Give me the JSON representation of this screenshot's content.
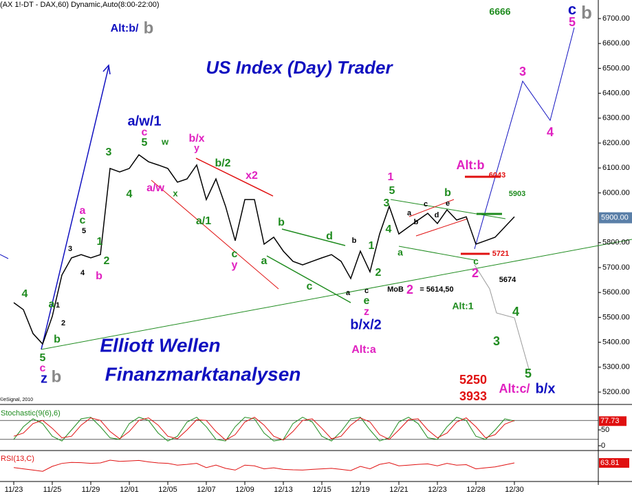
{
  "header": "(AX 1!-DT - DAX,60) Dynamic,Auto(8:00-22:00)",
  "copyright": "©eSignal, 2010",
  "chart_data": [
    {
      "type": "line",
      "color": "#000000",
      "categories": [
        "11/23",
        null,
        null,
        null,
        "11/25",
        null,
        null,
        null,
        "11/29",
        null,
        null,
        null,
        "12/01",
        null,
        null,
        null,
        "12/05",
        null,
        null,
        null,
        "12/07",
        null,
        null,
        null,
        "12/09",
        null,
        null,
        null,
        "12/13",
        null,
        null,
        null,
        "12/15",
        null,
        null,
        null,
        "12/19",
        null,
        null,
        null,
        "12/21",
        null,
        null,
        null,
        "12/23",
        null,
        null,
        null,
        "12/28",
        null,
        null,
        null,
        "12/30"
      ],
      "series": [
        {
          "name": "DAX",
          "color": "#000000",
          "values": [
            5559,
            5531,
            5435,
            5393,
            5504,
            5670,
            5739,
            5752,
            5739,
            5752,
            6098,
            6084,
            6098,
            6153,
            6125,
            6112,
            6098,
            6043,
            6056,
            6112,
            5973,
            6056,
            5946,
            5808,
            5973,
            5973,
            5794,
            5822,
            5766,
            5725,
            5711,
            5725,
            5739,
            5752,
            5725,
            5656,
            5766,
            5683,
            5835,
            5946,
            5835,
            5863,
            5891,
            5918,
            5877,
            5932,
            5891,
            5904,
            5794,
            5808,
            5822,
            5863,
            5904
          ]
        }
      ],
      "ylim": [
        5150,
        6800
      ],
      "yticks": [
        {
          "value": 5200,
          "label": "5200.00"
        },
        {
          "value": 5300,
          "label": "5300.00"
        },
        {
          "value": 5400,
          "label": "5400.00"
        },
        {
          "value": 5500,
          "label": "5500.00"
        },
        {
          "value": 5600,
          "label": "5600.00"
        },
        {
          "value": 5700,
          "label": "5700.00"
        },
        {
          "value": 5800,
          "label": "5800.00"
        },
        {
          "value": 6000,
          "label": "6000.00"
        },
        {
          "value": 6100,
          "label": "6100.00"
        },
        {
          "value": 6200,
          "label": "6200.00"
        },
        {
          "value": 6300,
          "label": "6300.00"
        },
        {
          "value": 6400,
          "label": "6400.00"
        },
        {
          "value": 6500,
          "label": "6500.00"
        },
        {
          "value": 6600,
          "label": "6600.00"
        },
        {
          "value": 6700,
          "label": "6700.00"
        }
      ],
      "last_price": {
        "value": 5900,
        "label": "5900.00"
      },
      "annotations": [
        {
          "text": "6666",
          "color": "#1e8b1e"
        },
        {
          "text": "c",
          "color": "#1010c0"
        },
        {
          "text": "5",
          "color": "#e020c0"
        },
        {
          "text": "b",
          "color": "#888888"
        },
        {
          "text": "Alt:b/",
          "color": "#1010c0"
        },
        {
          "text": "b",
          "color": "#888888"
        },
        {
          "text": "US Index (Day) Trader",
          "color": "#1010c0"
        },
        {
          "text": "a/w/1",
          "color": "#1010c0"
        },
        {
          "text": "c",
          "color": "#e020c0"
        },
        {
          "text": "5",
          "color": "#1e8b1e"
        },
        {
          "text": "w",
          "color": "#1e8b1e"
        },
        {
          "text": "3",
          "color": "#1e8b1e"
        },
        {
          "text": "4",
          "color": "#1e8b1e"
        },
        {
          "text": "b/x",
          "color": "#e020c0"
        },
        {
          "text": "y",
          "color": "#e020c0"
        },
        {
          "text": "b/2",
          "color": "#1e8b1e"
        },
        {
          "text": "x2",
          "color": "#e020c0"
        },
        {
          "text": "a/w",
          "color": "#e020c0"
        },
        {
          "text": "x",
          "color": "#1e8b1e"
        },
        {
          "text": "a/1",
          "color": "#1e8b1e"
        },
        {
          "text": "c",
          "color": "#1e8b1e"
        },
        {
          "text": "y",
          "color": "#e020c0"
        },
        {
          "text": "a",
          "color": "#1e8b1e"
        },
        {
          "text": "b",
          "color": "#1e8b1e"
        },
        {
          "text": "d",
          "color": "#1e8b1e"
        },
        {
          "text": "c",
          "color": "#1e8b1e"
        },
        {
          "text": "a",
          "color": "#000000"
        },
        {
          "text": "b",
          "color": "#000000"
        },
        {
          "text": "c",
          "color": "#000000"
        },
        {
          "text": "e",
          "color": "#1e8b1e"
        },
        {
          "text": "z",
          "color": "#e020c0"
        },
        {
          "text": "b/x/2",
          "color": "#1010c0"
        },
        {
          "text": "Alt:a",
          "color": "#e020c0"
        },
        {
          "text": "1",
          "color": "#1e8b1e"
        },
        {
          "text": "2",
          "color": "#1e8b1e"
        },
        {
          "text": "MoB",
          "color": "#000000"
        },
        {
          "text": "2",
          "color": "#e020c0"
        },
        {
          "text": "= 5614,50",
          "color": "#000000"
        },
        {
          "text": "1",
          "color": "#e020c0"
        },
        {
          "text": "5",
          "color": "#1e8b1e"
        },
        {
          "text": "3",
          "color": "#1e8b1e"
        },
        {
          "text": "4",
          "color": "#1e8b1e"
        },
        {
          "text": "a",
          "color": "#1e8b1e"
        },
        {
          "text": "a",
          "color": "#000000"
        },
        {
          "text": "b",
          "color": "#000000"
        },
        {
          "text": "c",
          "color": "#000000"
        },
        {
          "text": "d",
          "color": "#000000"
        },
        {
          "text": "e",
          "color": "#000000"
        },
        {
          "text": "b",
          "color": "#1e8b1e"
        },
        {
          "text": "c",
          "color": "#1e8b1e"
        },
        {
          "text": "2",
          "color": "#e020c0"
        },
        {
          "text": "5674",
          "color": "#000000"
        },
        {
          "text": "Alt:1",
          "color": "#1e8b1e"
        },
        {
          "text": "Alt:b",
          "color": "#e020c0"
        },
        {
          "text": "6043",
          "color": "#e01010"
        },
        {
          "text": "5903",
          "color": "#1e8b1e"
        },
        {
          "text": "5721",
          "color": "#e01010"
        },
        {
          "text": "3",
          "color": "#e020c0"
        },
        {
          "text": "4",
          "color": "#e020c0"
        },
        {
          "text": "4",
          "color": "#1e8b1e"
        },
        {
          "text": "3",
          "color": "#1e8b1e"
        },
        {
          "text": "5",
          "color": "#1e8b1e"
        },
        {
          "text": "5250",
          "color": "#e01010"
        },
        {
          "text": "3933",
          "color": "#e01010"
        },
        {
          "text": "Alt:c/",
          "color": "#e020c0"
        },
        {
          "text": "b/x",
          "color": "#1010c0"
        },
        {
          "text": "a",
          "color": "#e020c0"
        },
        {
          "text": "c",
          "color": "#1e8b1e"
        },
        {
          "text": "5",
          "color": "#000000"
        },
        {
          "text": "3",
          "color": "#000000"
        },
        {
          "text": "1",
          "color": "#1e8b1e"
        },
        {
          "text": "4",
          "color": "#000000"
        },
        {
          "text": "2",
          "color": "#1e8b1e"
        },
        {
          "text": "b",
          "color": "#e020c0"
        },
        {
          "text": "4",
          "color": "#1e8b1e"
        },
        {
          "text": "a",
          "color": "#1e8b1e"
        },
        {
          "text": "1",
          "color": "#000000"
        },
        {
          "text": "2",
          "color": "#000000"
        },
        {
          "text": "b",
          "color": "#1e8b1e"
        },
        {
          "text": "5",
          "color": "#1e8b1e"
        },
        {
          "text": "c",
          "color": "#e020c0"
        },
        {
          "text": "z",
          "color": "#1010c0"
        },
        {
          "text": "b",
          "color": "#888888"
        },
        {
          "text": "Elliott Wellen",
          "color": "#1010c0"
        },
        {
          "text": "Finanzmarktanalysen",
          "color": "#1010c0"
        }
      ]
    },
    {
      "type": "line",
      "title": "Stochastic(9(6),6)",
      "ylim": [
        0,
        100
      ],
      "yticks": [
        50,
        0
      ],
      "ref_lines": [
        20,
        80
      ],
      "last_value": {
        "value": 77.73,
        "label": "77.73"
      },
      "series": [
        {
          "name": "%K",
          "color": "#1e8b1e",
          "values": [
            20,
            60,
            85,
            70,
            30,
            15,
            50,
            85,
            90,
            60,
            25,
            20,
            70,
            90,
            80,
            40,
            15,
            30,
            75,
            90,
            60,
            20,
            15,
            60,
            90,
            85,
            40,
            15,
            20,
            70,
            90,
            75,
            30,
            15,
            45,
            85,
            90,
            50,
            15,
            25,
            75,
            90,
            70,
            25,
            20,
            60,
            90,
            80,
            30,
            20,
            50,
            85,
            78
          ]
        },
        {
          "name": "%D",
          "color": "#e01010",
          "values": [
            30,
            40,
            70,
            80,
            55,
            25,
            30,
            65,
            88,
            80,
            45,
            22,
            45,
            80,
            88,
            65,
            30,
            22,
            50,
            82,
            80,
            45,
            18,
            35,
            75,
            90,
            65,
            30,
            18,
            45,
            80,
            85,
            55,
            22,
            30,
            65,
            88,
            75,
            35,
            20,
            50,
            82,
            85,
            50,
            25,
            40,
            75,
            88,
            60,
            25,
            35,
            68,
            80
          ]
        }
      ]
    },
    {
      "type": "line",
      "title": "RSI(13,C)",
      "ylim": [
        0,
        100
      ],
      "last_value": {
        "value": 63.81,
        "label": "63.81"
      },
      "series": [
        {
          "name": "RSI",
          "color": "#e01010",
          "values": [
            45,
            40,
            35,
            30,
            50,
            62,
            66,
            65,
            62,
            64,
            75,
            70,
            72,
            74,
            68,
            64,
            62,
            55,
            58,
            62,
            45,
            55,
            42,
            35,
            55,
            52,
            40,
            44,
            38,
            36,
            35,
            38,
            40,
            42,
            38,
            33,
            50,
            40,
            58,
            65,
            52,
            55,
            58,
            60,
            52,
            62,
            55,
            57,
            40,
            44,
            48,
            56,
            64
          ]
        }
      ]
    }
  ]
}
